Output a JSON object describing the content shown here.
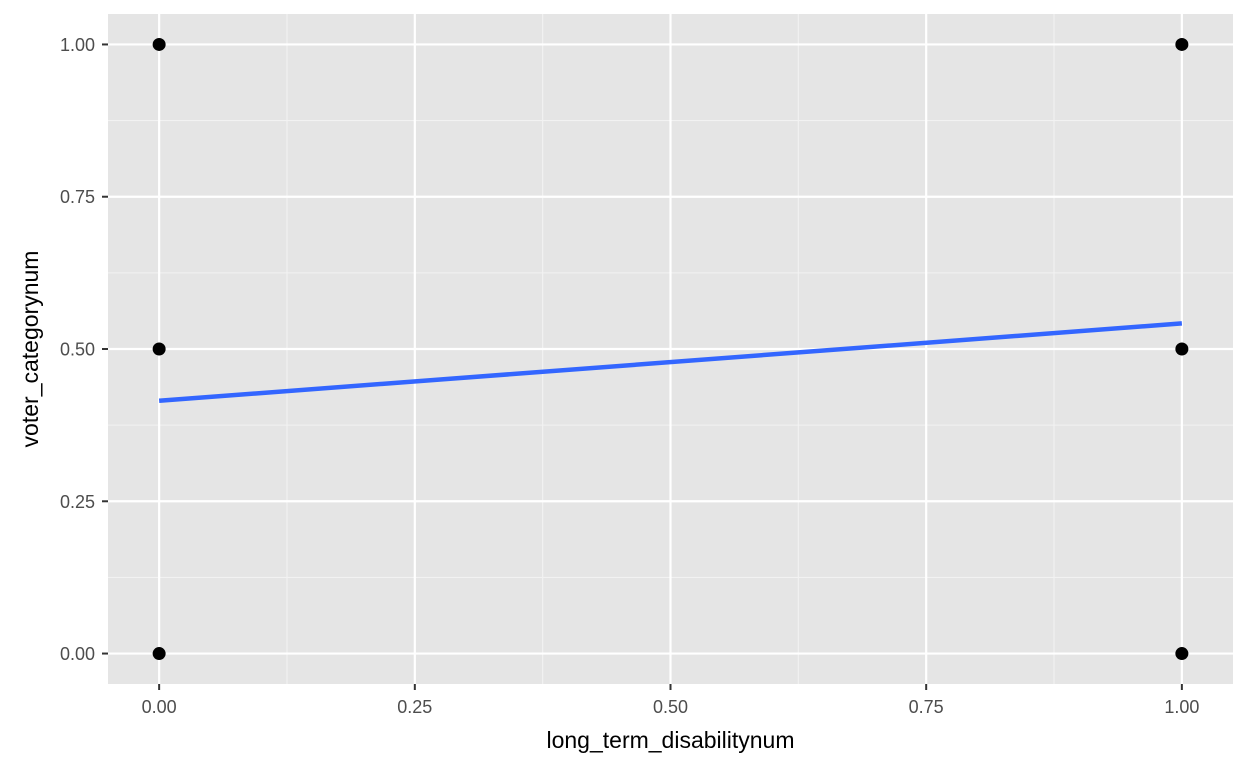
{
  "chart_data": {
    "type": "scatter",
    "title": "",
    "xlabel": "long_term_disabilitynum",
    "ylabel": "voter_categorynum",
    "xlim": [
      -0.05,
      1.05
    ],
    "ylim": [
      -0.05,
      1.05
    ],
    "x_ticks": [
      0,
      0.25,
      0.5,
      0.75,
      1
    ],
    "x_tick_labels": [
      "0.00",
      "0.25",
      "0.50",
      "0.75",
      "1.00"
    ],
    "y_ticks": [
      0,
      0.25,
      0.5,
      0.75,
      1
    ],
    "y_tick_labels": [
      "0.00",
      "0.25",
      "0.50",
      "0.75",
      "1.00"
    ],
    "grid": true,
    "series": [
      {
        "kind": "points",
        "color": "#000000",
        "points": [
          {
            "x": 0,
            "y": 0
          },
          {
            "x": 0,
            "y": 0.5
          },
          {
            "x": 0,
            "y": 1
          },
          {
            "x": 1,
            "y": 0
          },
          {
            "x": 1,
            "y": 0.5
          },
          {
            "x": 1,
            "y": 1
          }
        ]
      },
      {
        "kind": "line",
        "color": "#3366FF",
        "points": [
          {
            "x": 0,
            "y": 0.415
          },
          {
            "x": 1,
            "y": 0.542
          }
        ]
      }
    ],
    "colors": {
      "panel_background": "#E5E5E5",
      "grid_major": "#FFFFFF",
      "grid_minor": "#F2F2F2",
      "tick_mark": "#333333"
    }
  }
}
